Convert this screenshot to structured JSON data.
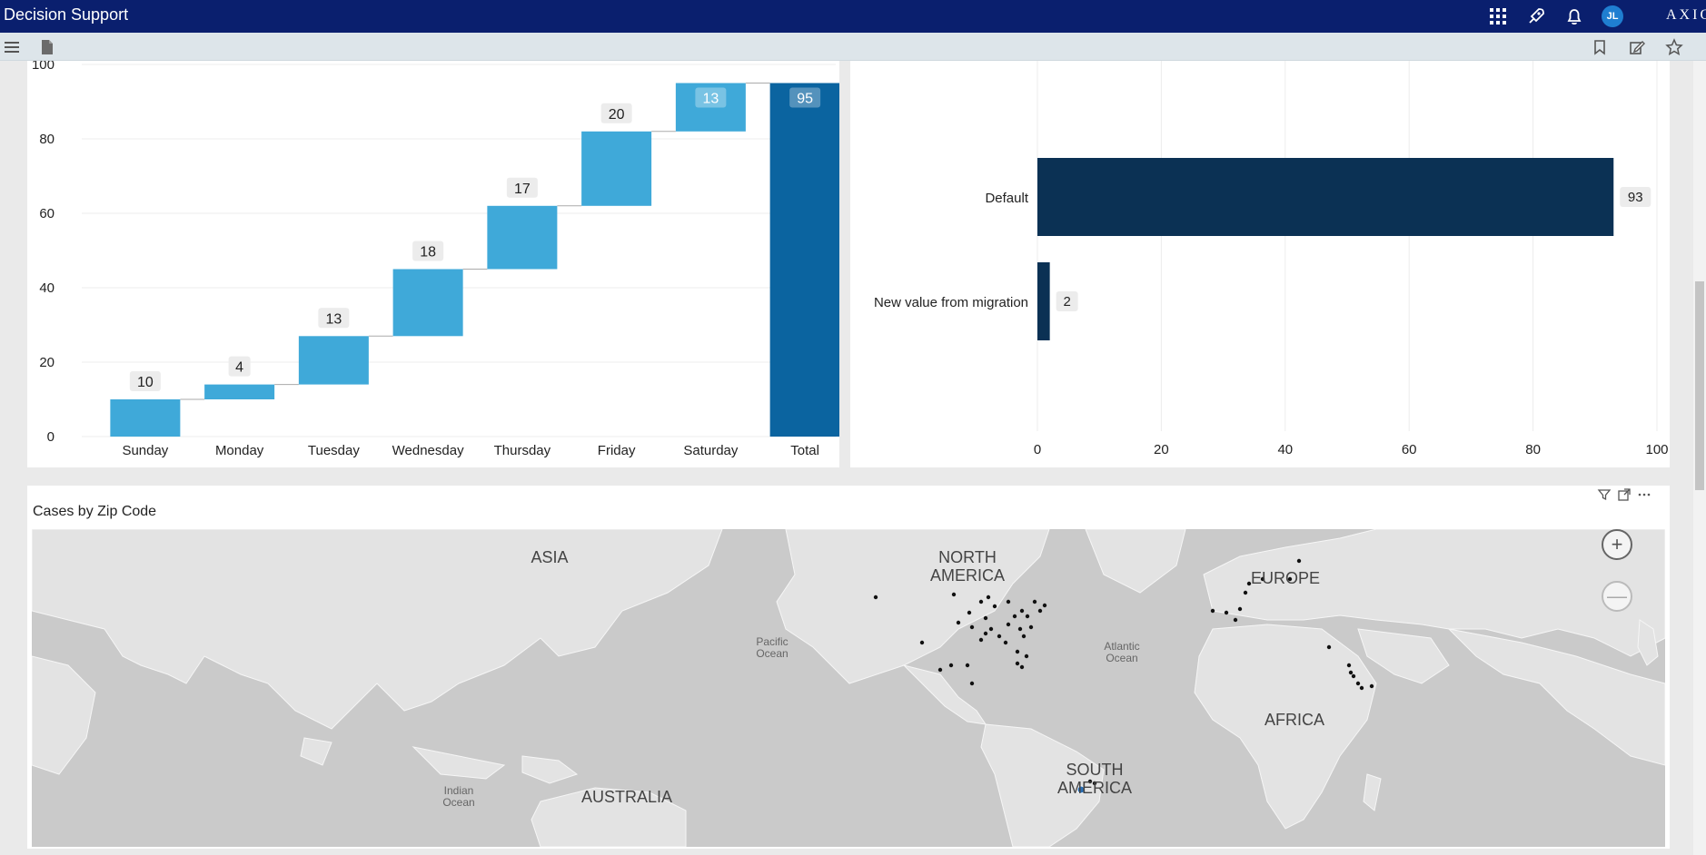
{
  "header": {
    "title": "Decision Support",
    "user_initials": "JL",
    "brand": "AXIO",
    "icons": [
      "apps-grid-icon",
      "rocket-icon",
      "bell-icon"
    ]
  },
  "toolbar": {
    "left_icons": [
      "hamburger-menu-icon",
      "document-icon"
    ],
    "right_icons": [
      "bookmark-icon",
      "edit-icon",
      "star-icon"
    ]
  },
  "colors": {
    "header_bg": "#0a1f6e",
    "waterfall_bar": "#3fa9d9",
    "waterfall_total": "#0b64a0",
    "hbar": "#0b3154",
    "map_land": "#e3e3e3",
    "map_water": "#cacaca"
  },
  "chart_data": [
    {
      "type": "bar",
      "subtype": "waterfall",
      "categories": [
        "Sunday",
        "Monday",
        "Tuesday",
        "Wednesday",
        "Thursday",
        "Friday",
        "Saturday",
        "Total"
      ],
      "values": [
        10,
        4,
        13,
        18,
        17,
        20,
        13,
        95
      ],
      "ylim": [
        0,
        100
      ],
      "yticks": [
        0,
        20,
        40,
        60,
        80,
        100
      ],
      "grid": true
    },
    {
      "type": "bar",
      "orientation": "horizontal",
      "categories": [
        "Default",
        "New value from migration"
      ],
      "values": [
        93,
        2
      ],
      "xlim": [
        0,
        100
      ],
      "xticks": [
        0,
        20,
        40,
        60,
        80,
        100
      ],
      "grid": true
    }
  ],
  "map": {
    "title": "Cases  by Zip Code",
    "continents": [
      "ASIA",
      "NORTH AMERICA",
      "EUROPE",
      "AFRICA",
      "SOUTH AMERICA",
      "AUSTRALIA"
    ],
    "oceans": [
      "Pacific Ocean",
      "Atlantic Ocean",
      "Indian Ocean"
    ],
    "zoom_in_label": "+",
    "zoom_out_label": "—"
  }
}
